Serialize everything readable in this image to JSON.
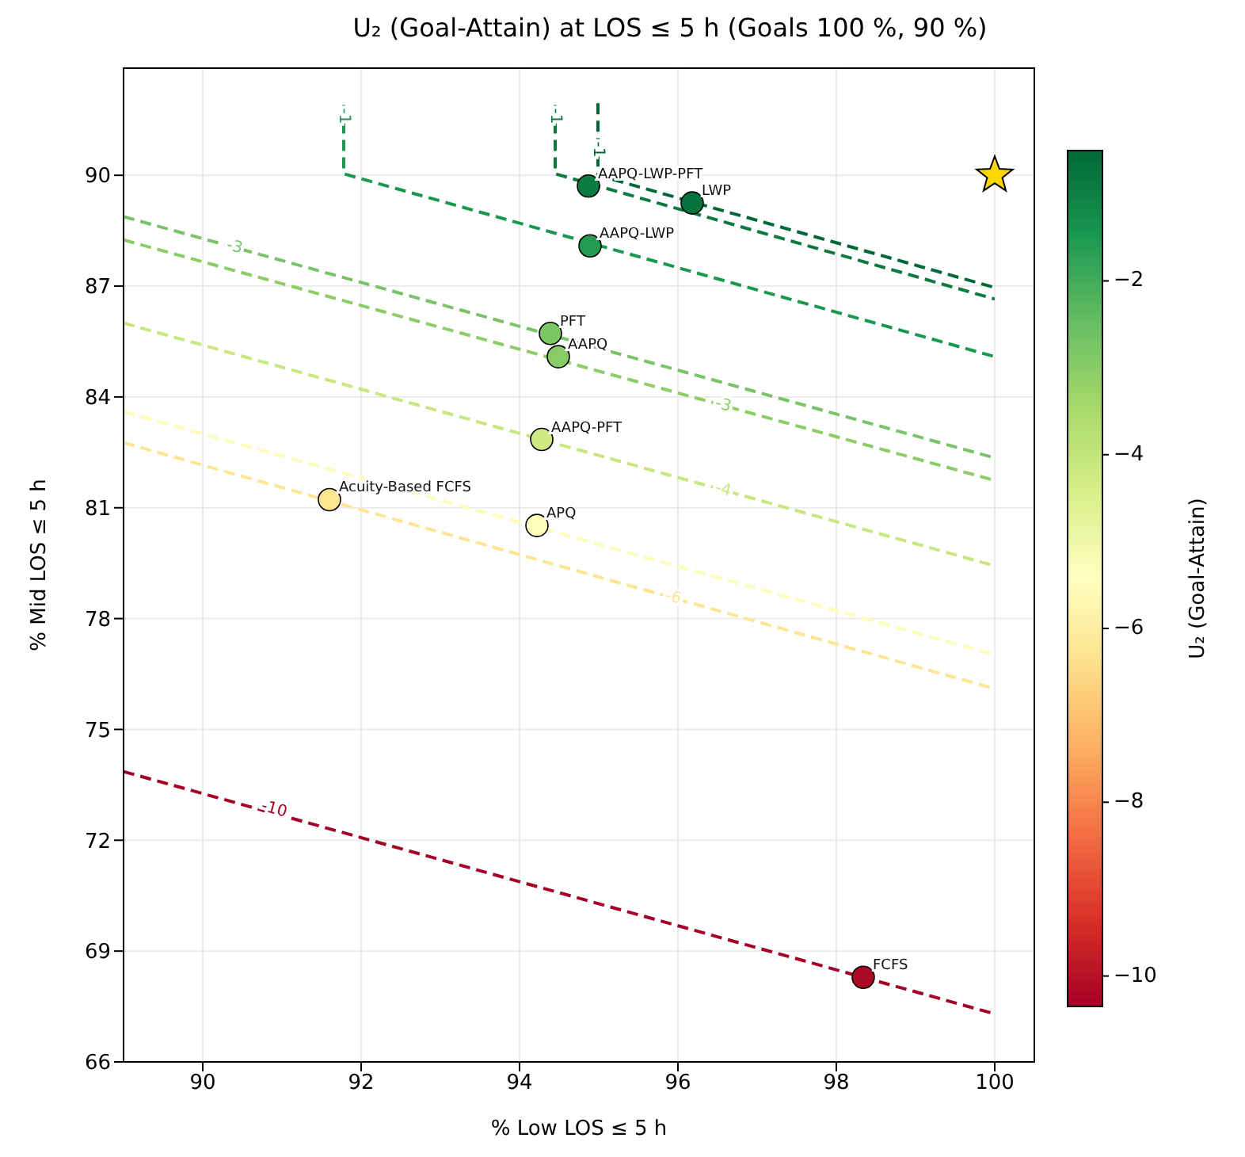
{
  "chart_data": {
    "type": "scatter",
    "title": "U₂ (Goal-Attain) at LOS ≤ 5 h (Goals 100 %, 90 %)",
    "xlabel": "% Low LOS ≤ 5 h",
    "ylabel": "% Mid LOS ≤ 5 h",
    "clabel": "U₂ (Goal-Attain)",
    "xlim": [
      89,
      100.5
    ],
    "xticks": [
      90,
      92,
      94,
      96,
      98,
      100
    ],
    "ylim": [
      66,
      92.9
    ],
    "yticks": [
      66,
      69,
      72,
      75,
      78,
      81,
      84,
      87,
      90
    ],
    "clim": [
      -10.35,
      -0.5
    ],
    "cticks": [
      {
        "value": -10,
        "label": "−10"
      },
      {
        "value": -8,
        "label": "−8"
      },
      {
        "value": -6,
        "label": "−6"
      },
      {
        "value": -4,
        "label": "−4"
      },
      {
        "value": -2,
        "label": "−2"
      }
    ],
    "grid": true,
    "series": [
      {
        "type": "line",
        "color": "#006837",
        "line_style": "dashed",
        "marker": "none",
        "x": [
          94.99,
          94.99,
          100
        ],
        "values": [
          91.95,
          90.0,
          86.96
        ]
      },
      {
        "type": "line",
        "color": "#0c7a3e",
        "line_style": "dashed",
        "marker": "none",
        "x": [
          94.45,
          94.45,
          100
        ],
        "values": [
          91.9,
          90.04,
          86.65
        ]
      },
      {
        "type": "line",
        "color": "#1a9850",
        "line_style": "dashed",
        "marker": "none",
        "x": [
          91.78,
          91.78,
          100
        ],
        "values": [
          91.9,
          90.04,
          85.09
        ]
      },
      {
        "type": "line",
        "color": "#7ac36a",
        "line_style": "dashed",
        "marker": "none",
        "x": [
          89,
          100
        ],
        "values": [
          88.88,
          82.35
        ]
      },
      {
        "type": "line",
        "color": "#8ccd67",
        "line_style": "dashed",
        "marker": "none",
        "x": [
          89,
          100
        ],
        "values": [
          88.25,
          81.74
        ]
      },
      {
        "type": "line",
        "color": "#c7e77f",
        "line_style": "dashed",
        "marker": "none",
        "x": [
          89,
          100
        ],
        "values": [
          86.0,
          79.43
        ]
      },
      {
        "type": "line",
        "color": "#fffbb8",
        "line_style": "dashed",
        "marker": "none",
        "x": [
          89,
          100
        ],
        "values": [
          83.6,
          77.02
        ]
      },
      {
        "type": "line",
        "color": "#fee593",
        "line_style": "dashed",
        "marker": "none",
        "x": [
          89,
          100
        ],
        "values": [
          82.76,
          76.1
        ]
      },
      {
        "type": "line",
        "color": "#a50026",
        "line_style": "dashed",
        "marker": "none",
        "x": [
          89,
          100
        ],
        "values": [
          73.86,
          67.3
        ]
      },
      {
        "type": "scatter",
        "marker": "circle",
        "x": [
          94.87,
          96.18,
          94.89,
          94.39,
          94.49,
          94.28,
          91.6,
          94.22,
          98.34
        ],
        "values": [
          89.71,
          89.25,
          88.09,
          85.72,
          85.09,
          82.85,
          81.22,
          80.52,
          68.29
        ],
        "colors": [
          "#0b7c41",
          "#05723c",
          "#239c52",
          "#7cc765",
          "#89cc67",
          "#cdea83",
          "#fee592",
          "#fdfebb",
          "#ad0726"
        ]
      },
      {
        "type": "scatter",
        "marker": "star",
        "color": "#ffd700",
        "x": [
          100
        ],
        "values": [
          90
        ]
      }
    ],
    "annotations": [
      {
        "text": "AAPQ-LWP-PFT",
        "x": 94.87,
        "y": 89.71
      },
      {
        "text": "LWP",
        "x": 96.18,
        "y": 89.25
      },
      {
        "text": "AAPQ-LWP",
        "x": 94.89,
        "y": 88.09
      },
      {
        "text": "PFT",
        "x": 94.39,
        "y": 85.72
      },
      {
        "text": "AAPQ",
        "x": 94.49,
        "y": 85.09
      },
      {
        "text": "AAPQ-PFT",
        "x": 94.28,
        "y": 82.85
      },
      {
        "text": "Acuity-Based FCFS",
        "x": 91.6,
        "y": 81.22
      },
      {
        "text": "APQ",
        "x": 94.22,
        "y": 80.52
      },
      {
        "text": "FCFS",
        "x": 98.34,
        "y": 68.29
      },
      {
        "text": "-1",
        "x": 91.78,
        "y": 91.6
      },
      {
        "text": "-1",
        "x": 94.45,
        "y": 91.6
      },
      {
        "text": "-1",
        "x": 94.99,
        "y": 90.7
      },
      {
        "text": "-3",
        "x": 90.4,
        "y": 88.05
      },
      {
        "text": "-3",
        "x": 96.57,
        "y": 83.77
      },
      {
        "text": "-4",
        "x": 96.57,
        "y": 81.48
      },
      {
        "text": "-6",
        "x": 95.94,
        "y": 78.56
      },
      {
        "text": "-10",
        "x": 90.9,
        "y": 72.83
      }
    ]
  }
}
